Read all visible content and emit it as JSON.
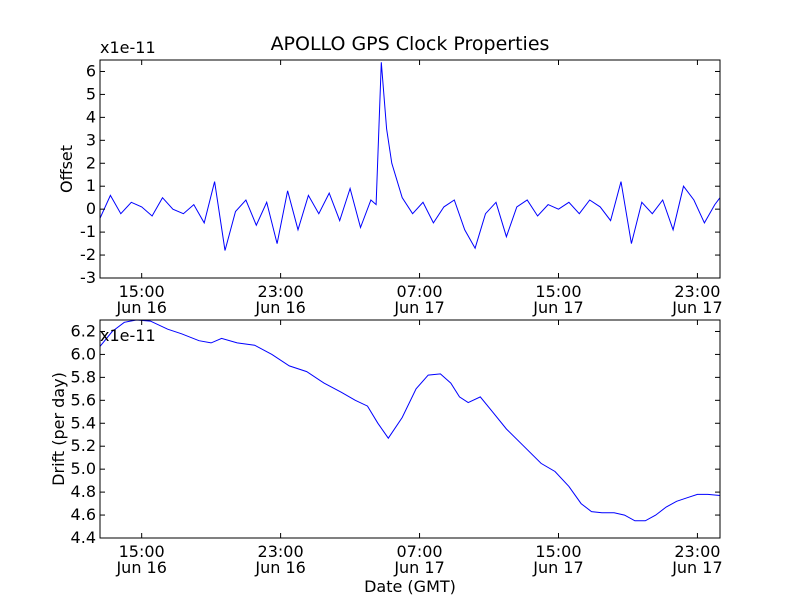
{
  "figure_title": "APOLLO GPS Clock Properties",
  "chart_data": [
    {
      "type": "line",
      "name": "offset",
      "ylabel": "Offset",
      "xlabel": "",
      "y_scale_label": "x1e-11",
      "ylim": [
        -3,
        6.5
      ],
      "yticks": [
        "-3",
        "-2",
        "-1",
        "0",
        "1",
        "2",
        "3",
        "4",
        "5",
        "6"
      ],
      "ytick_values": [
        -3,
        -2,
        -1,
        0,
        1,
        2,
        3,
        4,
        5,
        6
      ],
      "xlim_hours": [
        12.6,
        48.3
      ],
      "xtick_hours": [
        15,
        23,
        31,
        39,
        47
      ],
      "xticks": [
        {
          "time": "15:00",
          "date": "Jun 16"
        },
        {
          "time": "23:00",
          "date": "Jun 16"
        },
        {
          "time": "07:00",
          "date": "Jun 17"
        },
        {
          "time": "15:00",
          "date": "Jun 17"
        },
        {
          "time": "23:00",
          "date": "Jun 17"
        }
      ],
      "line_color": "#0000ff",
      "series_x_hours": [
        12.6,
        13.2,
        13.8,
        14.4,
        15.0,
        15.6,
        16.2,
        16.8,
        17.4,
        18.0,
        18.6,
        19.2,
        19.8,
        20.4,
        21.0,
        21.6,
        22.2,
        22.8,
        23.4,
        24.0,
        24.6,
        25.2,
        25.8,
        26.4,
        27.0,
        27.6,
        28.2,
        28.5,
        28.8,
        29.1,
        29.4,
        30.0,
        30.6,
        31.2,
        31.8,
        32.4,
        33.0,
        33.6,
        34.2,
        34.8,
        35.4,
        36.0,
        36.6,
        37.2,
        37.8,
        38.4,
        39.0,
        39.6,
        40.2,
        40.8,
        41.4,
        42.0,
        42.6,
        43.2,
        43.8,
        44.4,
        45.0,
        45.6,
        46.2,
        46.8,
        47.4,
        48.0,
        48.3
      ],
      "series_y": [
        -0.4,
        0.6,
        -0.2,
        0.3,
        0.1,
        -0.3,
        0.5,
        0.0,
        -0.2,
        0.2,
        -0.6,
        1.2,
        -1.8,
        -0.1,
        0.4,
        -0.7,
        0.3,
        -1.5,
        0.8,
        -0.9,
        0.6,
        -0.2,
        0.7,
        -0.5,
        0.9,
        -0.8,
        0.4,
        0.2,
        6.4,
        3.5,
        2.0,
        0.5,
        -0.2,
        0.3,
        -0.6,
        0.1,
        0.4,
        -0.9,
        -1.7,
        -0.2,
        0.3,
        -1.2,
        0.1,
        0.4,
        -0.3,
        0.2,
        0.0,
        0.3,
        -0.2,
        0.4,
        0.1,
        -0.5,
        1.2,
        -1.5,
        0.3,
        -0.2,
        0.4,
        -0.9,
        1.0,
        0.4,
        -0.6,
        0.2,
        0.5
      ]
    },
    {
      "type": "line",
      "name": "drift",
      "ylabel": "Drift (per day)",
      "xlabel": "Date (GMT)",
      "y_scale_label": "x1e-11",
      "ylim": [
        4.4,
        6.3
      ],
      "yticks": [
        "4.4",
        "4.6",
        "4.8",
        "5.0",
        "5.2",
        "5.4",
        "5.6",
        "5.8",
        "6.0",
        "6.2"
      ],
      "ytick_values": [
        4.4,
        4.6,
        4.8,
        5.0,
        5.2,
        5.4,
        5.6,
        5.8,
        6.0,
        6.2
      ],
      "xlim_hours": [
        12.6,
        48.3
      ],
      "xtick_hours": [
        15,
        23,
        31,
        39,
        47
      ],
      "xticks": [
        {
          "time": "15:00",
          "date": "Jun 16"
        },
        {
          "time": "23:00",
          "date": "Jun 16"
        },
        {
          "time": "07:00",
          "date": "Jun 17"
        },
        {
          "time": "15:00",
          "date": "Jun 17"
        },
        {
          "time": "23:00",
          "date": "Jun 17"
        }
      ],
      "line_color": "#0000ff",
      "series_x_hours": [
        12.6,
        13.3,
        14.0,
        14.7,
        15.5,
        16.5,
        17.3,
        18.3,
        19.0,
        19.6,
        20.5,
        21.5,
        22.5,
        23.5,
        24.5,
        25.5,
        26.5,
        27.3,
        28.0,
        28.6,
        29.2,
        30.0,
        30.8,
        31.5,
        32.2,
        32.8,
        33.3,
        33.8,
        34.5,
        35.2,
        36.0,
        37.0,
        38.0,
        38.8,
        39.6,
        40.3,
        40.9,
        41.5,
        42.2,
        42.8,
        43.4,
        44.0,
        44.6,
        45.2,
        45.8,
        46.4,
        47.0,
        47.6,
        48.3
      ],
      "series_y": [
        6.07,
        6.2,
        6.28,
        6.3,
        6.29,
        6.22,
        6.18,
        6.12,
        6.1,
        6.14,
        6.1,
        6.08,
        6.0,
        5.9,
        5.85,
        5.75,
        5.67,
        5.6,
        5.55,
        5.4,
        5.27,
        5.45,
        5.7,
        5.82,
        5.83,
        5.75,
        5.63,
        5.58,
        5.63,
        5.5,
        5.35,
        5.2,
        5.05,
        4.98,
        4.85,
        4.7,
        4.63,
        4.62,
        4.62,
        4.6,
        4.55,
        4.55,
        4.6,
        4.67,
        4.72,
        4.75,
        4.78,
        4.78,
        4.77
      ]
    }
  ]
}
